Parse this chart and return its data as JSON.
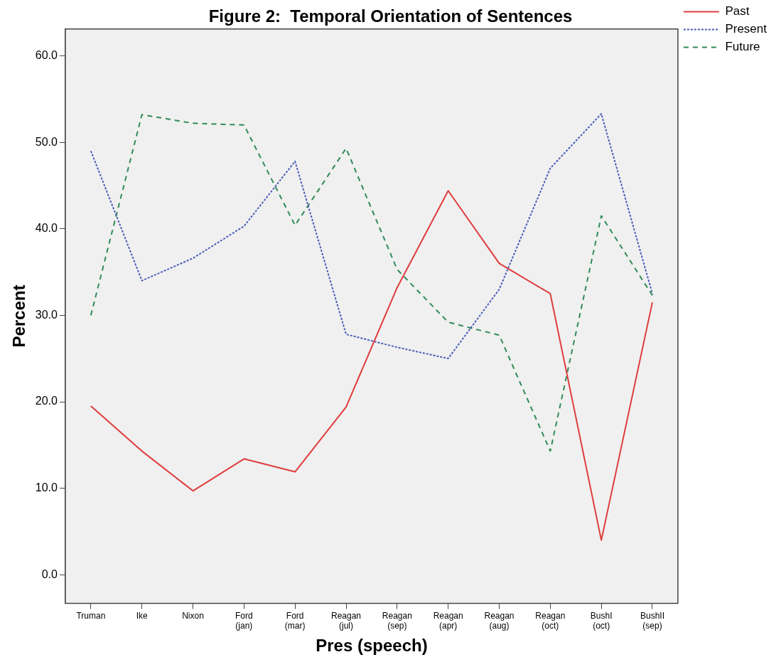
{
  "chart_data": {
    "type": "line",
    "title": "Figure 2:  Temporal Orientation of Sentences",
    "xlabel": "Pres (speech)",
    "ylabel": "Percent",
    "categories": [
      "Truman",
      "Ike",
      "Nixon",
      "Ford (jan)",
      "Ford (mar)",
      "Reagan (jul)",
      "Reagan (sep)",
      "Reagan (apr)",
      "Reagan (aug)",
      "Reagan (oct)",
      "BushI (oct)",
      "BushII (sep)"
    ],
    "series": [
      {
        "name": "Past",
        "color": "#e03c3c",
        "line_style": "solid",
        "values": [
          19.5,
          14.3,
          9.7,
          13.4,
          11.9,
          19.4,
          33.2,
          44.4,
          36.0,
          32.5,
          4.0,
          31.5
        ]
      },
      {
        "name": "Present",
        "color": "#4a5cb8",
        "line_style": "dotted",
        "values": [
          49.0,
          34.0,
          36.6,
          40.3,
          47.8,
          27.8,
          26.3,
          25.0,
          33.0,
          47.0,
          53.3,
          32.5
        ]
      },
      {
        "name": "Future",
        "color": "#2e8b57",
        "line_style": "dashed",
        "values": [
          30.0,
          53.2,
          52.2,
          52.0,
          40.4,
          49.3,
          35.3,
          29.2,
          27.7,
          14.3,
          41.5,
          32.3
        ]
      }
    ],
    "ylim": [
      -3.3,
      63.1
    ],
    "yticks": [
      {
        "value": 0,
        "label": "0.0"
      },
      {
        "value": 10,
        "label": "10.0"
      },
      {
        "value": 20,
        "label": "20.0"
      },
      {
        "value": 30,
        "label": "30.0"
      },
      {
        "value": 40,
        "label": "40.0"
      },
      {
        "value": 50,
        "label": "50.0"
      },
      {
        "value": 60,
        "label": "60.0"
      }
    ],
    "grid": false,
    "legend": "right",
    "marker": "none"
  }
}
